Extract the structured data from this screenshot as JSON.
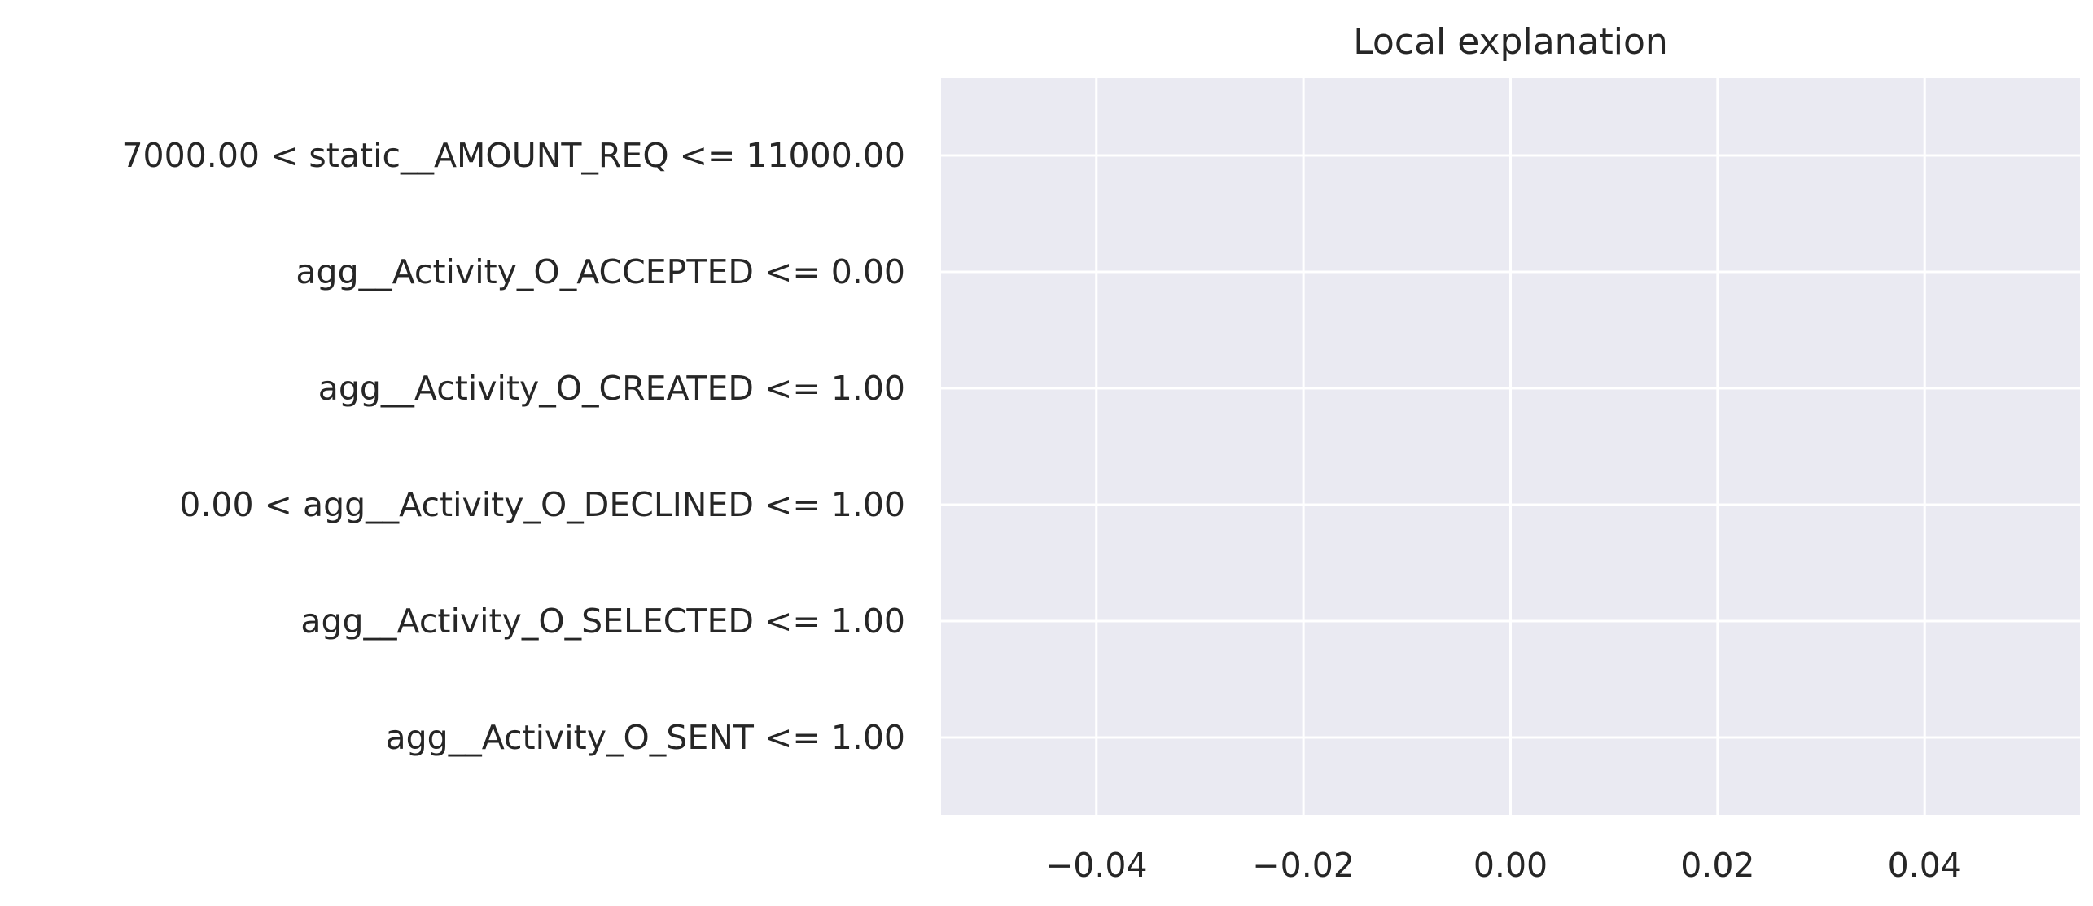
{
  "chart_data": {
    "type": "bar",
    "orientation": "horizontal",
    "title": "Local explanation",
    "xlabel": "",
    "ylabel": "",
    "categories": [
      "7000.00 < static__AMOUNT_REQ <= 11000.00",
      "agg__Activity_O_ACCEPTED <= 0.00",
      "agg__Activity_O_CREATED <= 1.00",
      "0.00 < agg__Activity_O_DECLINED <= 1.00",
      "agg__Activity_O_SELECTED <= 1.00",
      "agg__Activity_O_SENT <= 1.00"
    ],
    "values": [
      0,
      0,
      0,
      0,
      0,
      0
    ],
    "xlim": [
      -0.055,
      0.055
    ],
    "xticks": [
      -0.04,
      -0.02,
      0.0,
      0.02,
      0.04
    ],
    "xtick_labels": [
      "−0.04",
      "−0.02",
      "0.00",
      "0.02",
      "0.04"
    ],
    "grid": true,
    "legend": "none",
    "colors": {
      "plot_background": "#eaeaf2",
      "grid": "#ffffff",
      "text": "#262626",
      "bar": "#4c72b0"
    }
  }
}
